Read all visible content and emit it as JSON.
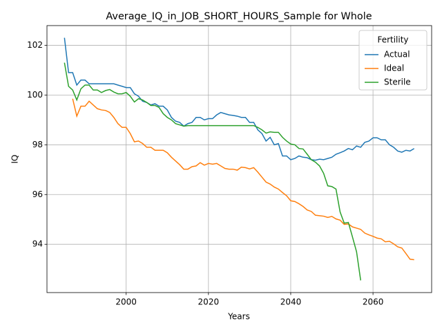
{
  "chart_data": {
    "type": "line",
    "title": "Average_IQ_in_JOB_SHORT_HOURS_Sample for Whole",
    "x_label": "Years",
    "y_label": "IQ",
    "legend_title": "Fertility",
    "legend_loc": "upper right",
    "grid": true,
    "xlim": [
      1980.75,
      2074.25
    ],
    "ylim": [
      92.06,
      102.79
    ],
    "xticks": [
      2000,
      2020,
      2040,
      2060
    ],
    "yticks": [
      94,
      96,
      98,
      100,
      102
    ],
    "x": [
      1985,
      1986,
      1987,
      1988,
      1989,
      1990,
      1991,
      1992,
      1993,
      1994,
      1995,
      1996,
      1997,
      1998,
      1999,
      2000,
      2001,
      2002,
      2003,
      2004,
      2005,
      2006,
      2007,
      2008,
      2009,
      2010,
      2011,
      2012,
      2013,
      2014,
      2015,
      2016,
      2017,
      2018,
      2019,
      2020,
      2021,
      2022,
      2023,
      2024,
      2025,
      2026,
      2027,
      2028,
      2029,
      2030,
      2031,
      2032,
      2033,
      2034,
      2035,
      2036,
      2037,
      2038,
      2039,
      2040,
      2041,
      2042,
      2043,
      2044,
      2045,
      2046,
      2047,
      2048,
      2049,
      2050,
      2051,
      2052,
      2053,
      2054,
      2055,
      2056,
      2057,
      2058,
      2059,
      2060,
      2061,
      2062,
      2063,
      2064,
      2065,
      2066,
      2067,
      2068,
      2069,
      2070
    ],
    "series": [
      {
        "name": "Actual",
        "color": "#1f77b4",
        "values": [
          102.3,
          100.9,
          100.9,
          100.4,
          100.6,
          100.6,
          100.45,
          100.45,
          100.45,
          100.45,
          100.45,
          100.45,
          100.45,
          100.4,
          100.35,
          100.3,
          100.3,
          100.05,
          99.95,
          99.75,
          99.7,
          99.6,
          99.65,
          99.55,
          99.55,
          99.4,
          99.1,
          98.95,
          98.9,
          98.75,
          98.85,
          98.9,
          99.1,
          99.1,
          99.0,
          99.05,
          99.05,
          99.2,
          99.3,
          99.25,
          99.2,
          99.18,
          99.15,
          99.1,
          99.1,
          98.9,
          98.9,
          98.6,
          98.45,
          98.15,
          98.3,
          98.0,
          98.05,
          97.55,
          97.55,
          97.4,
          97.45,
          97.55,
          97.5,
          97.48,
          97.4,
          97.38,
          97.42,
          97.4,
          97.45,
          97.5,
          97.62,
          97.68,
          97.75,
          97.85,
          97.8,
          97.95,
          97.9,
          98.1,
          98.15,
          98.28,
          98.28,
          98.2,
          98.2,
          98.0,
          97.9,
          97.75,
          97.7,
          97.78,
          97.75,
          97.85
        ]
      },
      {
        "name": "Ideal",
        "color": "#ff7f0e",
        "values": [
          null,
          null,
          99.85,
          99.15,
          99.55,
          99.55,
          99.75,
          99.6,
          99.45,
          99.4,
          99.38,
          99.3,
          99.1,
          98.85,
          98.7,
          98.7,
          98.45,
          98.12,
          98.15,
          98.05,
          97.9,
          97.9,
          97.78,
          97.78,
          97.78,
          97.68,
          97.5,
          97.35,
          97.2,
          97.02,
          97.02,
          97.12,
          97.15,
          97.28,
          97.18,
          97.25,
          97.22,
          97.25,
          97.15,
          97.05,
          97.02,
          97.02,
          96.98,
          97.1,
          97.08,
          97.03,
          97.08,
          96.9,
          96.7,
          96.5,
          96.42,
          96.3,
          96.22,
          96.08,
          95.95,
          95.75,
          95.72,
          95.63,
          95.52,
          95.38,
          95.32,
          95.17,
          95.15,
          95.13,
          95.08,
          95.12,
          95.02,
          94.97,
          94.8,
          94.82,
          94.7,
          94.65,
          94.6,
          94.45,
          94.38,
          94.32,
          94.25,
          94.22,
          94.1,
          94.12,
          94.02,
          93.9,
          93.85,
          93.63,
          93.4,
          93.38
        ]
      },
      {
        "name": "Sterile",
        "color": "#2ca02c",
        "values": [
          101.3,
          100.35,
          100.2,
          99.8,
          100.25,
          100.4,
          100.4,
          100.2,
          100.2,
          100.1,
          100.18,
          100.22,
          100.12,
          100.05,
          100.05,
          100.1,
          99.95,
          99.72,
          99.85,
          99.8,
          99.7,
          99.58,
          99.58,
          99.5,
          99.25,
          99.1,
          99.0,
          98.85,
          98.8,
          98.75,
          98.77,
          98.77,
          98.77,
          98.77,
          98.77,
          98.77,
          98.77,
          98.77,
          98.77,
          98.77,
          98.77,
          98.77,
          98.77,
          98.77,
          98.77,
          98.77,
          98.77,
          98.7,
          98.6,
          98.47,
          98.52,
          98.5,
          98.5,
          98.3,
          98.15,
          98.03,
          98.0,
          97.85,
          97.83,
          97.62,
          97.4,
          97.3,
          97.15,
          96.85,
          96.35,
          96.32,
          96.22,
          95.3,
          94.85,
          94.88,
          94.3,
          93.7,
          92.55,
          null,
          null,
          null,
          null,
          null,
          null,
          null,
          null,
          null,
          null,
          null,
          null,
          null
        ]
      }
    ]
  }
}
